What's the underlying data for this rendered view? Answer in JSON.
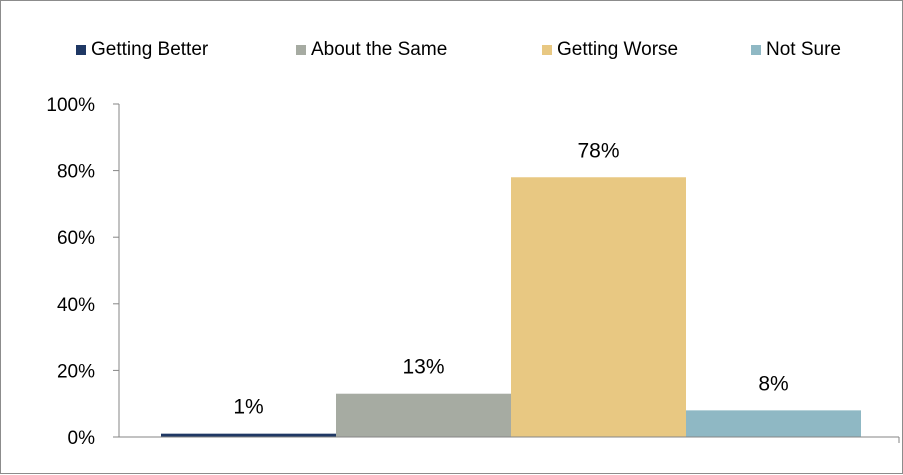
{
  "chart_data": {
    "type": "bar",
    "categories": [
      "Getting Better",
      "About the Same",
      "Getting Worse",
      "Not Sure"
    ],
    "values": [
      1,
      13,
      78,
      8
    ],
    "data_labels": [
      "1%",
      "13%",
      "78%",
      "8%"
    ],
    "colors": [
      "#1f3864",
      "#a6aba2",
      "#e8c882",
      "#8fb8c4"
    ],
    "yticks": [
      "0%",
      "20%",
      "40%",
      "60%",
      "80%",
      "100%"
    ],
    "ylim": [
      0,
      100
    ],
    "legend_position": "top",
    "grid": false
  }
}
